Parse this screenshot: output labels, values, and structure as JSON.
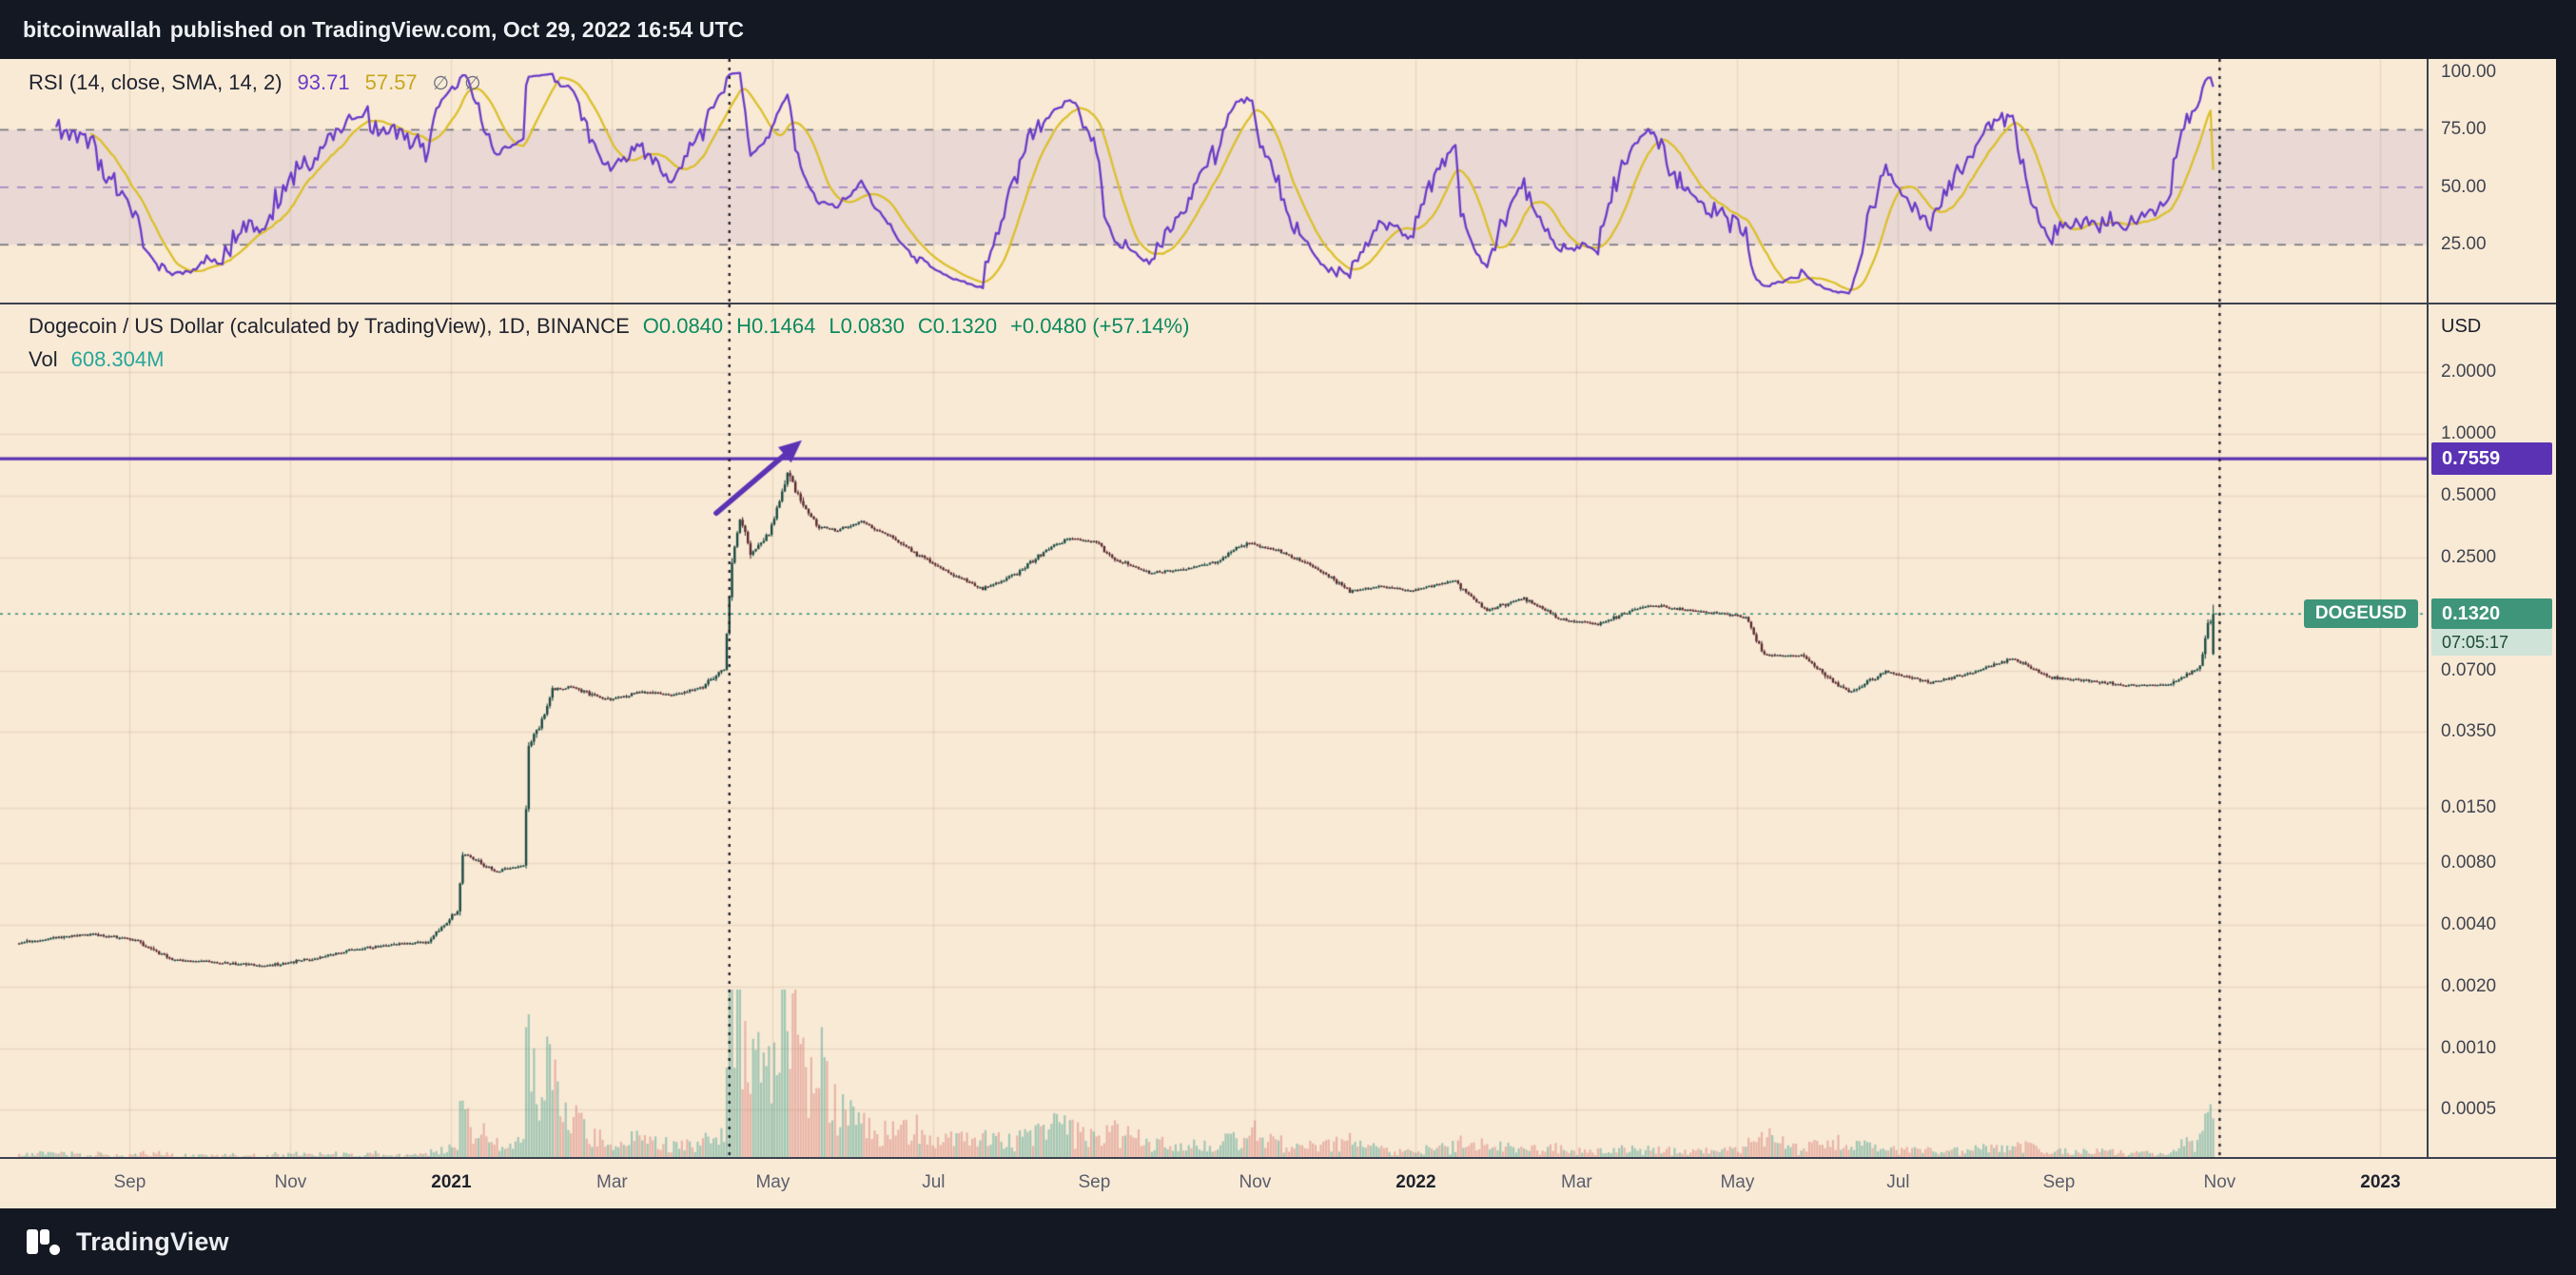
{
  "header": {
    "author": "bitcoinwallah",
    "rest": "published on TradingView.com, Oct 29, 2022 16:54 UTC"
  },
  "footer": {
    "brand": "TradingView"
  },
  "icons": {
    "hidden": "∅"
  },
  "rsi_panel": {
    "label": "RSI (14, close, SMA, 14, 2)",
    "value_rsi": "93.71",
    "value_sma": "57.57",
    "tick_labels": [
      "100.00",
      "75.00",
      "50.00",
      "25.00"
    ],
    "tick_values": [
      100,
      75,
      50,
      25
    ],
    "colors": {
      "rsi_line": "#6a3bc8",
      "sma_line": "#dcc02c",
      "band": "rgba(126,87,194,0.12)"
    }
  },
  "price_panel": {
    "title": "Dogecoin / US Dollar (calculated by TradingView), 1D, BINANCE",
    "ohlc": {
      "o": "O0.0840",
      "h": "H0.1464",
      "l": "L0.0830",
      "c": "C0.1320",
      "change": "+0.0480 (+57.14%)"
    },
    "vol_label": "Vol",
    "vol_value": "608.304M",
    "axis_currency": "USD",
    "tick_labels": [
      "2.0000",
      "1.0000",
      "0.5000",
      "0.2500",
      "0.0700",
      "0.0350",
      "0.0150",
      "0.0080",
      "0.0040",
      "0.0020",
      "0.0010",
      "0.0005"
    ],
    "tick_values": [
      2,
      1,
      0.5,
      0.25,
      0.07,
      0.035,
      0.015,
      0.008,
      0.004,
      0.002,
      0.001,
      0.0005
    ],
    "hline_label": "0.7559",
    "last": {
      "symbol": "DOGEUSD",
      "label": "0.1320",
      "countdown": "07:05:17"
    }
  },
  "chart_data": {
    "type": "candlestick",
    "symbol": "DOGEUSD",
    "exchange": "BINANCE",
    "interval": "1D",
    "y_scale": "log",
    "title": "Dogecoin / US Dollar",
    "last": {
      "open": 0.084,
      "high": 0.1464,
      "low": 0.083,
      "close": 0.132,
      "change_abs": 0.048,
      "change_pct": 57.14
    },
    "last_price": 0.132,
    "horizontal_line": 0.7559,
    "vertical_lines": [
      "2021-04-15",
      "2022-11-01"
    ],
    "arrow": {
      "from_date": "2021-04-10",
      "from_price": 0.41,
      "to_date": "2021-05-12",
      "to_price": 0.93
    },
    "rsi": {
      "length": 14,
      "source": "close",
      "smoothing": "SMA",
      "smoothing_length": 14,
      "last_rsi": 93.71,
      "last_sma": 57.57,
      "levels": [
        75,
        50,
        25
      ]
    },
    "price_ticks": [
      2,
      1,
      0.5,
      0.25,
      0.07,
      0.035,
      0.015,
      0.008,
      0.004,
      0.002,
      0.001,
      0.0005
    ],
    "time_ticks": [
      {
        "label": "Sep",
        "date": "2020-09-01",
        "major": false
      },
      {
        "label": "Nov",
        "date": "2020-11-01",
        "major": false
      },
      {
        "label": "2021",
        "date": "2021-01-01",
        "major": true
      },
      {
        "label": "Mar",
        "date": "2021-03-01",
        "major": false
      },
      {
        "label": "May",
        "date": "2021-05-01",
        "major": false
      },
      {
        "label": "Jul",
        "date": "2021-07-01",
        "major": false
      },
      {
        "label": "Sep",
        "date": "2021-09-01",
        "major": false
      },
      {
        "label": "Nov",
        "date": "2021-11-01",
        "major": false
      },
      {
        "label": "2022",
        "date": "2022-01-01",
        "major": true
      },
      {
        "label": "Mar",
        "date": "2022-03-01",
        "major": false
      },
      {
        "label": "May",
        "date": "2022-05-01",
        "major": false
      },
      {
        "label": "Jul",
        "date": "2022-07-01",
        "major": false
      },
      {
        "label": "Sep",
        "date": "2022-09-01",
        "major": false
      },
      {
        "label": "Nov",
        "date": "2022-11-01",
        "major": false
      },
      {
        "label": "2023",
        "date": "2023-01-01",
        "major": true
      }
    ],
    "price_anchors": [
      [
        "2020-07-20",
        0.00325,
        0.02
      ],
      [
        "2020-08-02",
        0.00345,
        0.03
      ],
      [
        "2020-08-16",
        0.0036,
        0.02
      ],
      [
        "2020-09-01",
        0.0034,
        0.02
      ],
      [
        "2020-09-16",
        0.0027,
        0.02
      ],
      [
        "2020-10-05",
        0.00262,
        0.015
      ],
      [
        "2020-10-22",
        0.00252,
        0.015
      ],
      [
        "2020-11-06",
        0.0027,
        0.02
      ],
      [
        "2020-11-22",
        0.003,
        0.02
      ],
      [
        "2020-12-08",
        0.0032,
        0.02
      ],
      [
        "2020-12-22",
        0.0033,
        0.02
      ],
      [
        "2021-01-02",
        0.0047,
        0.05
      ],
      [
        "2021-01-04",
        0.009,
        0.22
      ],
      [
        "2021-01-16",
        0.0073,
        0.08
      ],
      [
        "2021-01-27",
        0.0078,
        0.1
      ],
      [
        "2021-01-29",
        0.03,
        0.45
      ],
      [
        "2021-02-01",
        0.035,
        0.4
      ],
      [
        "2021-02-07",
        0.056,
        0.5
      ],
      [
        "2021-02-14",
        0.058,
        0.25
      ],
      [
        "2021-02-21",
        0.054,
        0.15
      ],
      [
        "2021-03-01",
        0.05,
        0.1
      ],
      [
        "2021-03-12",
        0.055,
        0.1
      ],
      [
        "2021-03-24",
        0.053,
        0.08
      ],
      [
        "2021-04-05",
        0.058,
        0.08
      ],
      [
        "2021-04-13",
        0.072,
        0.15
      ],
      [
        "2021-04-16",
        0.24,
        0.85
      ],
      [
        "2021-04-19",
        0.39,
        1.0
      ],
      [
        "2021-04-23",
        0.26,
        0.55
      ],
      [
        "2021-04-30",
        0.33,
        0.45
      ],
      [
        "2021-05-04",
        0.46,
        0.8
      ],
      [
        "2021-05-07",
        0.65,
        0.95
      ],
      [
        "2021-05-09",
        0.57,
        0.7
      ],
      [
        "2021-05-13",
        0.45,
        0.55
      ],
      [
        "2021-05-19",
        0.35,
        0.6
      ],
      [
        "2021-05-26",
        0.34,
        0.3
      ],
      [
        "2021-06-04",
        0.37,
        0.2
      ],
      [
        "2021-06-15",
        0.315,
        0.15
      ],
      [
        "2021-06-25",
        0.26,
        0.15
      ],
      [
        "2021-07-07",
        0.21,
        0.1
      ],
      [
        "2021-07-20",
        0.175,
        0.1
      ],
      [
        "2021-08-01",
        0.205,
        0.1
      ],
      [
        "2021-08-14",
        0.275,
        0.18
      ],
      [
        "2021-08-22",
        0.31,
        0.18
      ],
      [
        "2021-09-01",
        0.295,
        0.1
      ],
      [
        "2021-09-08",
        0.245,
        0.14
      ],
      [
        "2021-09-21",
        0.208,
        0.1
      ],
      [
        "2021-10-03",
        0.218,
        0.07
      ],
      [
        "2021-10-16",
        0.235,
        0.07
      ],
      [
        "2021-10-28",
        0.295,
        0.16
      ],
      [
        "2021-11-09",
        0.268,
        0.09
      ],
      [
        "2021-11-23",
        0.222,
        0.07
      ],
      [
        "2021-12-06",
        0.17,
        0.09
      ],
      [
        "2021-12-18",
        0.18,
        0.05
      ],
      [
        "2021-12-30",
        0.171,
        0.04
      ],
      [
        "2022-01-14",
        0.192,
        0.07
      ],
      [
        "2022-01-27",
        0.138,
        0.06
      ],
      [
        "2022-02-10",
        0.158,
        0.05
      ],
      [
        "2022-02-24",
        0.124,
        0.05
      ],
      [
        "2022-03-10",
        0.118,
        0.04
      ],
      [
        "2022-03-29",
        0.146,
        0.05
      ],
      [
        "2022-04-12",
        0.138,
        0.04
      ],
      [
        "2022-04-25",
        0.133,
        0.04
      ],
      [
        "2022-05-05",
        0.128,
        0.05
      ],
      [
        "2022-05-12",
        0.083,
        0.14
      ],
      [
        "2022-05-26",
        0.083,
        0.05
      ],
      [
        "2022-06-13",
        0.054,
        0.09
      ],
      [
        "2022-06-27",
        0.069,
        0.05
      ],
      [
        "2022-07-14",
        0.061,
        0.04
      ],
      [
        "2022-07-29",
        0.068,
        0.04
      ],
      [
        "2022-08-14",
        0.08,
        0.08
      ],
      [
        "2022-08-27",
        0.065,
        0.04
      ],
      [
        "2022-09-12",
        0.062,
        0.04
      ],
      [
        "2022-09-27",
        0.059,
        0.03
      ],
      [
        "2022-10-12",
        0.0595,
        0.03
      ],
      [
        "2022-10-24",
        0.073,
        0.12
      ],
      [
        "2022-10-27",
        0.115,
        0.28
      ],
      [
        "2022-10-29",
        0.132,
        0.3
      ]
    ]
  }
}
